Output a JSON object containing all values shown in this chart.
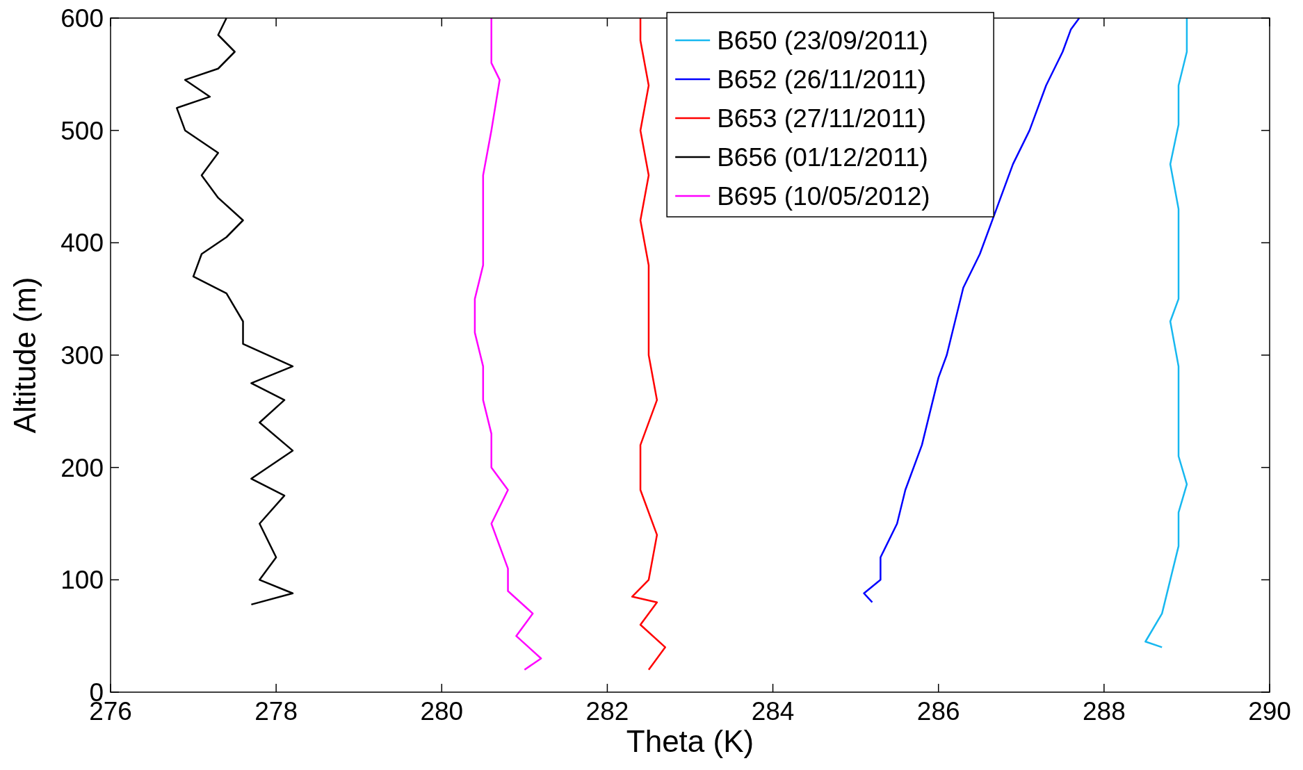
{
  "chart_data": {
    "type": "line",
    "xlabel": "Theta (K)",
    "ylabel": "Altitude (m)",
    "xlim": [
      276,
      290
    ],
    "xticks": [
      276,
      278,
      280,
      282,
      284,
      286,
      288,
      290
    ],
    "ylim": [
      0,
      600
    ],
    "yticks": [
      0,
      100,
      200,
      300,
      400,
      500,
      600
    ],
    "grid": false,
    "legend": "top",
    "line_style": "solid",
    "marker": "none",
    "series": [
      {
        "name": "B650 (23/09/2011)",
        "color": "#17b8f0",
        "x": [
          288.7,
          288.5,
          288.7,
          288.8,
          288.9,
          288.9,
          289.0,
          288.9,
          288.9,
          288.9,
          288.8,
          288.9,
          288.9,
          288.9,
          288.8,
          288.9,
          288.9,
          289.0,
          289.0
        ],
        "values": [
          40,
          45,
          70,
          100,
          130,
          160,
          185,
          210,
          250,
          290,
          330,
          350,
          390,
          430,
          470,
          505,
          540,
          570,
          600
        ]
      },
      {
        "name": "B652 (26/11/2011)",
        "color": "#0000ff",
        "x": [
          285.2,
          285.1,
          285.3,
          285.3,
          285.5,
          285.6,
          285.8,
          285.9,
          286.0,
          286.1,
          286.2,
          286.3,
          286.5,
          286.7,
          286.9,
          287.1,
          287.3,
          287.5,
          287.6,
          287.7
        ],
        "values": [
          80,
          88,
          100,
          120,
          150,
          180,
          220,
          250,
          280,
          300,
          330,
          360,
          390,
          430,
          470,
          500,
          540,
          570,
          590,
          600
        ]
      },
      {
        "name": "B653 (27/11/2011)",
        "color": "#ff0000",
        "x": [
          282.5,
          282.7,
          282.4,
          282.6,
          282.3,
          282.5,
          282.6,
          282.4,
          282.4,
          282.6,
          282.5,
          282.5,
          282.5,
          282.4,
          282.5,
          282.4,
          282.5,
          282.4,
          282.4
        ],
        "values": [
          20,
          40,
          60,
          80,
          85,
          100,
          140,
          180,
          220,
          260,
          300,
          340,
          380,
          420,
          460,
          500,
          540,
          580,
          600
        ]
      },
      {
        "name": "B656 (01/12/2011)",
        "color": "#000000",
        "x": [
          277.7,
          278.2,
          277.8,
          278.0,
          277.8,
          278.1,
          277.7,
          278.2,
          277.8,
          278.1,
          277.7,
          278.2,
          277.6,
          277.6,
          277.4,
          277.0,
          277.1,
          277.4,
          277.6,
          277.3,
          277.1,
          277.3,
          276.9,
          276.8,
          277.2,
          276.9,
          277.3,
          277.5,
          277.3,
          277.4
        ],
        "values": [
          78,
          88,
          100,
          120,
          150,
          175,
          190,
          215,
          240,
          260,
          275,
          290,
          310,
          330,
          355,
          370,
          390,
          405,
          420,
          440,
          460,
          480,
          500,
          520,
          530,
          545,
          555,
          570,
          585,
          600
        ]
      },
      {
        "name": "B695 (10/05/2012)",
        "color": "#ff00ff",
        "x": [
          281.0,
          281.2,
          280.9,
          281.1,
          280.8,
          280.8,
          280.7,
          280.6,
          280.8,
          280.6,
          280.6,
          280.5,
          280.5,
          280.4,
          280.4,
          280.5,
          280.5,
          280.5,
          280.6,
          280.7,
          280.6,
          280.6,
          280.6
        ],
        "values": [
          20,
          30,
          50,
          70,
          90,
          110,
          130,
          150,
          180,
          200,
          230,
          260,
          290,
          320,
          350,
          380,
          420,
          460,
          500,
          545,
          560,
          580,
          600
        ]
      }
    ]
  }
}
